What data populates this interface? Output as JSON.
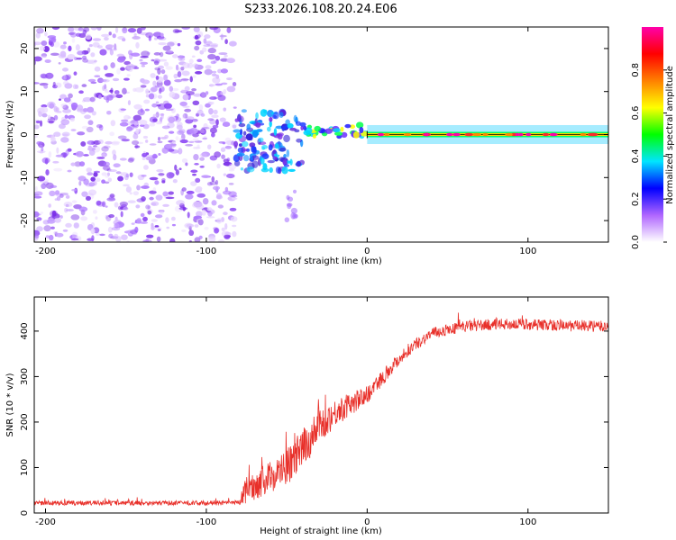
{
  "title": "S233.2026.108.20.24.E06",
  "chart_data": [
    {
      "type": "heatmap",
      "xlabel": "Height of straight line (km)",
      "ylabel": "Frequency (Hz)",
      "xlim": [
        -207,
        150
      ],
      "ylim": [
        -25,
        25
      ],
      "xticks": [
        -200,
        -100,
        0,
        100
      ],
      "yticks": [
        -20,
        -10,
        0,
        10,
        20
      ],
      "noise_region_km": [
        -207,
        -82
      ],
      "turbulent_region_km": [
        -82,
        -40
      ],
      "tone_region_km": [
        -40,
        150
      ],
      "tone_frequency_hz": 0,
      "tone_marker_window_km": [
        0,
        150
      ],
      "colorbar": {
        "label": "Normalized spectral amplitude",
        "range": [
          0,
          1
        ],
        "ticks": [
          "0.0",
          "0.2",
          "0.4",
          "0.6",
          "0.8"
        ],
        "colors": [
          "#ffffff",
          "#b066ff",
          "#0000ff",
          "#00e5ff",
          "#00ff00",
          "#ffff00",
          "#ff8000",
          "#ff0000",
          "#ff00aa"
        ]
      }
    },
    {
      "type": "line",
      "xlabel": "Height of straight line (km)",
      "ylabel": "SNR (10 * v/v)",
      "xlim": [
        -207,
        150
      ],
      "ylim": [
        0,
        475
      ],
      "xticks": [
        -200,
        -100,
        0,
        100
      ],
      "yticks": [
        0,
        100,
        200,
        300,
        400
      ],
      "color": "#e8302a",
      "profile_x": [
        -207,
        -80,
        -75,
        -60,
        -50,
        -40,
        -30,
        -20,
        -10,
        0,
        10,
        20,
        30,
        40,
        60,
        80,
        100,
        120,
        150
      ],
      "profile_y": [
        22,
        22,
        50,
        80,
        100,
        140,
        190,
        220,
        240,
        260,
        300,
        340,
        370,
        395,
        410,
        415,
        415,
        412,
        410
      ],
      "noise_amplitude": [
        10,
        10,
        60,
        70,
        80,
        90,
        80,
        60,
        50,
        40,
        35,
        30,
        25,
        25,
        25,
        25,
        25,
        25,
        25
      ]
    }
  ]
}
